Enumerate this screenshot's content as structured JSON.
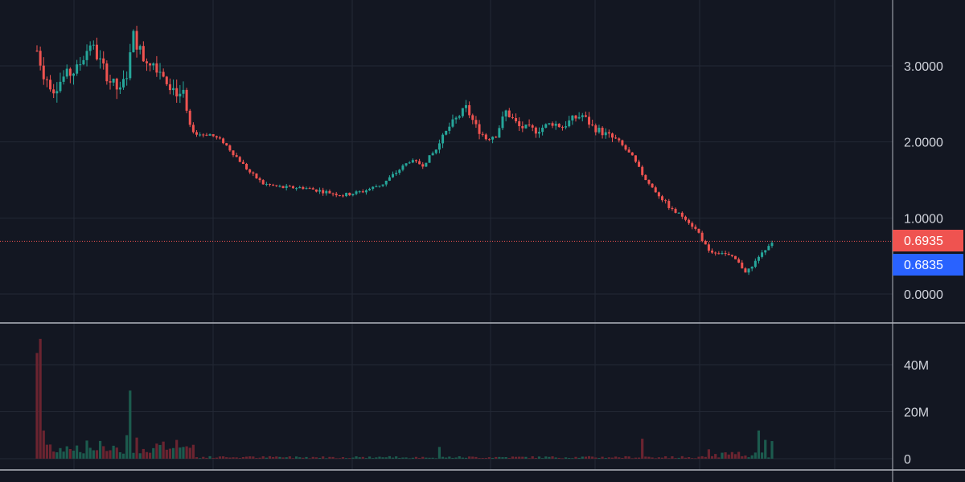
{
  "colors": {
    "background": "#131722",
    "grid": "#232835",
    "axis_text": "#d1d4dc",
    "separator": "#b2b5be",
    "up": "#26a69a",
    "down": "#ef5350",
    "up_volume": "#1c5b4e",
    "down_volume": "#6b2430",
    "last_price_tag": "#ef5350",
    "bid_price_tag": "#2962ff"
  },
  "chart_data": [
    {
      "type": "candlestick",
      "pane": "price",
      "title": "",
      "xlabel": "",
      "ylabel": "",
      "y_ticks": [
        "3.0000",
        "2.0000",
        "1.0000",
        "0.0000"
      ],
      "y_tick_values": [
        3,
        2,
        1,
        0
      ],
      "ylim": [
        -0.37,
        3.85
      ],
      "grid": true,
      "price_tags": [
        {
          "label": "0.6935",
          "value": 0.6935,
          "color_key": "last_price_tag"
        },
        {
          "label": "0.6835",
          "value": 0.6835,
          "color_key": "bid_price_tag"
        }
      ],
      "series": [
        {
          "name": "",
          "close_path": [
            [
              0,
              3.2
            ],
            [
              2,
              2.9
            ],
            [
              5,
              2.7
            ],
            [
              8,
              2.85
            ],
            [
              12,
              2.95
            ],
            [
              16,
              3.3
            ],
            [
              19,
              3.05
            ],
            [
              22,
              2.8
            ],
            [
              25,
              2.65
            ],
            [
              27,
              2.9
            ],
            [
              29,
              3.4
            ],
            [
              32,
              3.1
            ],
            [
              35,
              3.05
            ],
            [
              38,
              2.9
            ],
            [
              41,
              2.7
            ],
            [
              44,
              2.6
            ],
            [
              46,
              2.2
            ],
            [
              48,
              2.1
            ],
            [
              52,
              2.1
            ],
            [
              56,
              2.0
            ],
            [
              60,
              1.8
            ],
            [
              64,
              1.6
            ],
            [
              68,
              1.45
            ],
            [
              74,
              1.4
            ],
            [
              80,
              1.4
            ],
            [
              86,
              1.35
            ],
            [
              92,
              1.3
            ],
            [
              98,
              1.35
            ],
            [
              104,
              1.45
            ],
            [
              108,
              1.6
            ],
            [
              112,
              1.75
            ],
            [
              116,
              1.7
            ],
            [
              120,
              1.9
            ],
            [
              124,
              2.2
            ],
            [
              127,
              2.35
            ],
            [
              129,
              2.45
            ],
            [
              132,
              2.2
            ],
            [
              135,
              2.05
            ],
            [
              138,
              2.1
            ],
            [
              141,
              2.4
            ],
            [
              145,
              2.2
            ],
            [
              150,
              2.15
            ],
            [
              155,
              2.25
            ],
            [
              158,
              2.2
            ],
            [
              161,
              2.3
            ],
            [
              164,
              2.35
            ],
            [
              167,
              2.2
            ],
            [
              171,
              2.1
            ],
            [
              175,
              2.0
            ],
            [
              179,
              1.8
            ],
            [
              183,
              1.5
            ],
            [
              187,
              1.3
            ],
            [
              191,
              1.1
            ],
            [
              195,
              1.0
            ],
            [
              199,
              0.8
            ],
            [
              202,
              0.55
            ],
            [
              206,
              0.55
            ],
            [
              210,
              0.45
            ],
            [
              213,
              0.3
            ],
            [
              215,
              0.35
            ],
            [
              217,
              0.5
            ],
            [
              219,
              0.6
            ],
            [
              221,
              0.69
            ]
          ]
        }
      ]
    },
    {
      "type": "bar",
      "pane": "volume",
      "title": "",
      "xlabel": "",
      "ylabel": "",
      "y_ticks": [
        "40M",
        "20M",
        "0"
      ],
      "y_tick_values": [
        40000000,
        20000000,
        0
      ],
      "ylim": [
        0,
        55000000
      ],
      "spikes": [
        {
          "index": 0,
          "value": 45000000
        },
        {
          "index": 1,
          "value": 51000000
        },
        {
          "index": 2,
          "value": 12000000
        },
        {
          "index": 28,
          "value": 29000000
        },
        {
          "index": 27,
          "value": 10000000
        },
        {
          "index": 30,
          "value": 9000000
        },
        {
          "index": 42,
          "value": 8000000
        },
        {
          "index": 121,
          "value": 5000000
        },
        {
          "index": 182,
          "value": 8500000
        },
        {
          "index": 202,
          "value": 4000000
        },
        {
          "index": 217,
          "value": 12000000
        },
        {
          "index": 219,
          "value": 8000000
        },
        {
          "index": 221,
          "value": 7500000
        }
      ]
    }
  ]
}
